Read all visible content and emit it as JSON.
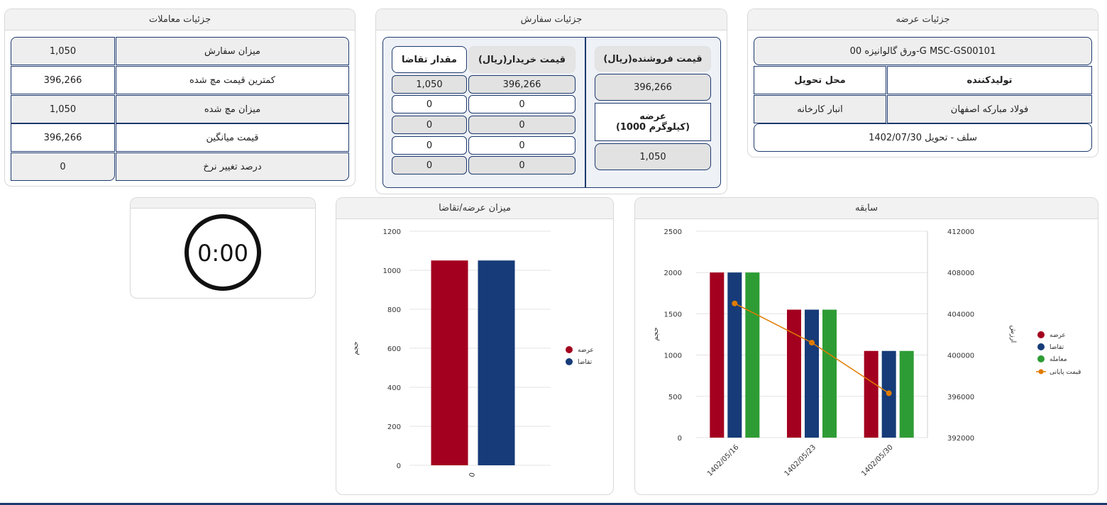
{
  "offer_details": {
    "title": "جزئیات عرضه",
    "product": "ورق گالوانیزه 00-G MSC-GS00101",
    "producer_label": "تولیدکننده",
    "delivery_place_label": "محل تحویل",
    "producer_value": "فولاد مبارکه اصفهان",
    "delivery_place_value": "انبار کارخانه",
    "delivery_info": "سلف - تحویل 1402/07/30"
  },
  "order_details": {
    "title": "جزئیات سفارش",
    "seller_price_label": "قیمت فروشنده(ریال)",
    "seller_price_value": "396,266",
    "supply_label_1": "عرضه",
    "supply_label_2": "(1000 کیلوگرم)",
    "supply_value": "1,050",
    "buyer_price_label": "قیمت خریدار(ریال)",
    "demand_qty_label": "مقدار تقاضا",
    "rows": [
      {
        "price": "396,266",
        "qty": "1,050"
      },
      {
        "price": "0",
        "qty": "0"
      },
      {
        "price": "0",
        "qty": "0"
      },
      {
        "price": "0",
        "qty": "0"
      },
      {
        "price": "0",
        "qty": "0"
      }
    ]
  },
  "transaction_details": {
    "title": "جزئیات معاملات",
    "rows": [
      {
        "label": "میزان سفارش",
        "value": "1,050"
      },
      {
        "label": "کمترین قیمت مچ شده",
        "value": "396,266"
      },
      {
        "label": "میزان مچ شده",
        "value": "1,050"
      },
      {
        "label": "قیمت میانگین",
        "value": "396,266"
      },
      {
        "label": "درصد تغییر نرخ",
        "value": "0"
      }
    ]
  },
  "timer": {
    "value": "0:00"
  },
  "colors": {
    "supply": "#a3001f",
    "demand": "#163b78",
    "trade": "#2e9c35",
    "final_price": "#e07b00",
    "border": "#1e3a6e"
  },
  "chart_data": [
    {
      "title": "سابقه",
      "type": "bar",
      "categories": [
        "1402/05/16",
        "1402/05/23",
        "1402/05/30"
      ],
      "ylim": [
        0,
        2500
      ],
      "y2lim": [
        392000,
        412000
      ],
      "yticks": [
        "0",
        "500",
        "1000",
        "1500",
        "2000",
        "2500"
      ],
      "y2ticks": [
        "392000",
        "396000",
        "400000",
        "404000",
        "408000",
        "412000"
      ],
      "ylabel": "حجم",
      "y2label": "ارزش",
      "series": [
        {
          "name": "عرضه",
          "type": "bar",
          "values": [
            2000,
            1550,
            1050
          ]
        },
        {
          "name": "تقاضا",
          "type": "bar",
          "values": [
            2000,
            1550,
            1050
          ]
        },
        {
          "name": "معامله",
          "type": "bar",
          "values": [
            2000,
            1550,
            1050
          ]
        },
        {
          "name": "قیمت پایانی",
          "type": "line",
          "axis": "y2",
          "values": [
            405000,
            401200,
            396300
          ]
        }
      ],
      "grid": true,
      "legend": "right"
    },
    {
      "title": "میزان عرضه/تقاضا",
      "type": "bar",
      "categories": [
        "0"
      ],
      "ylim": [
        0,
        1200
      ],
      "yticks": [
        "0",
        "200",
        "400",
        "600",
        "800",
        "1000",
        "1200"
      ],
      "ylabel": "حجم",
      "series": [
        {
          "name": "عرضه",
          "values": [
            1050
          ]
        },
        {
          "name": "تقاضا",
          "values": [
            1050
          ]
        }
      ],
      "grid": true,
      "legend": "right"
    }
  ]
}
